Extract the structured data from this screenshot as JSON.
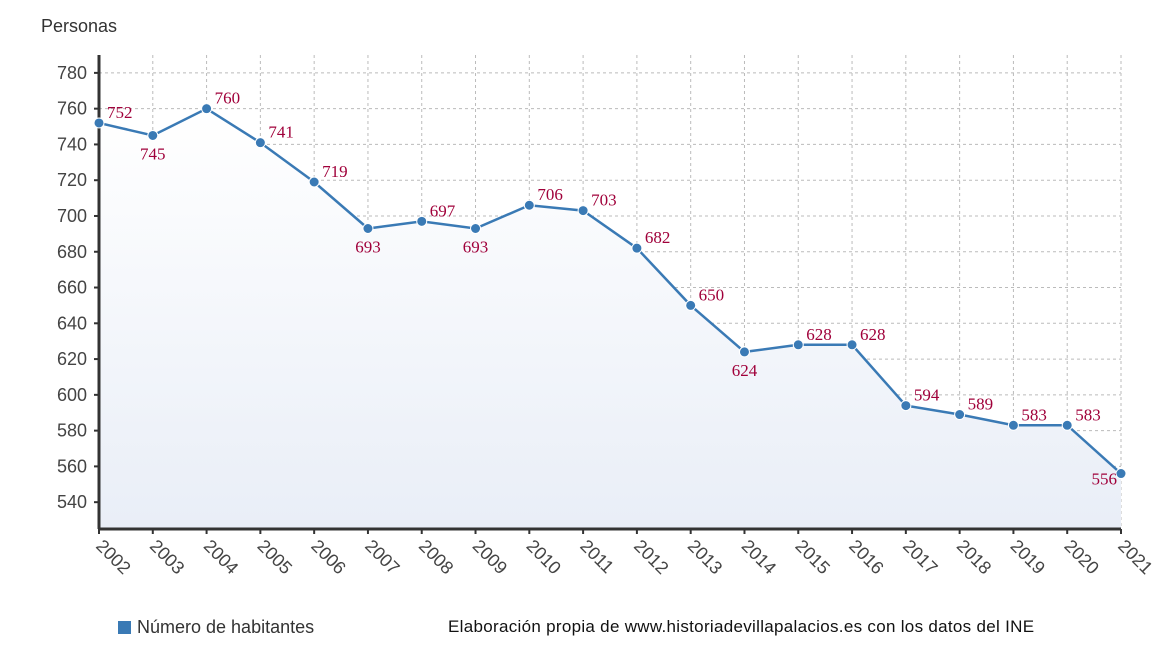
{
  "chart_data": {
    "type": "line",
    "title": "",
    "ylabel": "Personas",
    "xlabel": "",
    "x": [
      "2002",
      "2003",
      "2004",
      "2005",
      "2006",
      "2007",
      "2008",
      "2009",
      "2010",
      "2011",
      "2012",
      "2013",
      "2014",
      "2015",
      "2016",
      "2017",
      "2018",
      "2019",
      "2020",
      "2021"
    ],
    "series": [
      {
        "name": "Número de habitantes",
        "values": [
          752,
          745,
          760,
          741,
          719,
          693,
          697,
          693,
          706,
          703,
          682,
          650,
          624,
          628,
          628,
          594,
          589,
          583,
          583,
          556
        ]
      }
    ],
    "yticks": [
      540,
      560,
      580,
      600,
      620,
      640,
      660,
      680,
      700,
      720,
      740,
      760,
      780
    ],
    "ylim": [
      525,
      790
    ],
    "grid": true,
    "area_fill": true,
    "legend": "bottom-left",
    "colors": {
      "line": "#3a7ab5",
      "labels": "#a0003a",
      "axis": "#333333",
      "grid": "#bbbbbb"
    }
  },
  "credit": "Elaboración propia de www.historiadevillapalacios.es con los datos del INE"
}
